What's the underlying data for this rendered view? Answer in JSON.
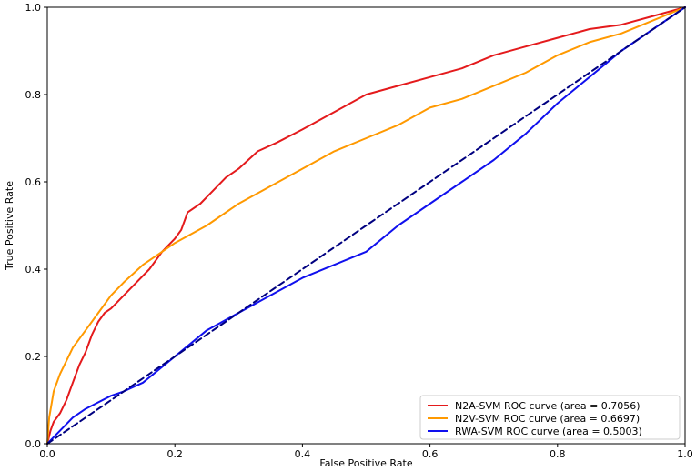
{
  "chart_data": {
    "type": "line",
    "title": "",
    "xlabel": "False Positive Rate",
    "ylabel": "True Positive Rate",
    "xlim": [
      0.0,
      1.0
    ],
    "ylim": [
      0.0,
      1.0
    ],
    "x_ticks": [
      "0.0",
      "0.2",
      "0.4",
      "0.6",
      "0.8",
      "1.0"
    ],
    "y_ticks": [
      "0.0",
      "0.2",
      "0.4",
      "0.6",
      "0.8",
      "1.0"
    ],
    "grid": false,
    "legend_position": "bottom-right",
    "series": [
      {
        "name": "N2A-SVM ROC curve (area = 0.7056)",
        "color": "#e41a1c",
        "x": [
          0.0,
          0.005,
          0.01,
          0.02,
          0.03,
          0.04,
          0.05,
          0.06,
          0.07,
          0.08,
          0.09,
          0.1,
          0.12,
          0.14,
          0.16,
          0.18,
          0.2,
          0.21,
          0.22,
          0.24,
          0.26,
          0.28,
          0.3,
          0.33,
          0.36,
          0.4,
          0.45,
          0.5,
          0.55,
          0.6,
          0.65,
          0.7,
          0.75,
          0.8,
          0.85,
          0.9,
          0.95,
          1.0
        ],
        "y": [
          0.0,
          0.03,
          0.05,
          0.07,
          0.1,
          0.14,
          0.18,
          0.21,
          0.25,
          0.28,
          0.3,
          0.31,
          0.34,
          0.37,
          0.4,
          0.44,
          0.47,
          0.49,
          0.53,
          0.55,
          0.58,
          0.61,
          0.63,
          0.67,
          0.69,
          0.72,
          0.76,
          0.8,
          0.82,
          0.84,
          0.86,
          0.89,
          0.91,
          0.93,
          0.95,
          0.96,
          0.98,
          1.0
        ]
      },
      {
        "name": "N2V-SVM ROC curve (area = 0.6697)",
        "color": "#ff9900",
        "x": [
          0.0,
          0.003,
          0.01,
          0.02,
          0.03,
          0.04,
          0.06,
          0.08,
          0.1,
          0.12,
          0.15,
          0.18,
          0.2,
          0.25,
          0.3,
          0.35,
          0.4,
          0.45,
          0.5,
          0.55,
          0.6,
          0.65,
          0.7,
          0.75,
          0.8,
          0.85,
          0.9,
          0.95,
          1.0
        ],
        "y": [
          0.0,
          0.06,
          0.12,
          0.16,
          0.19,
          0.22,
          0.26,
          0.3,
          0.34,
          0.37,
          0.41,
          0.44,
          0.46,
          0.5,
          0.55,
          0.59,
          0.63,
          0.67,
          0.7,
          0.73,
          0.77,
          0.79,
          0.82,
          0.85,
          0.89,
          0.92,
          0.94,
          0.97,
          1.0
        ]
      },
      {
        "name": "RWA-SVM ROC curve (area = 0.5003)",
        "color": "#1010ee",
        "x": [
          0.0,
          0.02,
          0.04,
          0.06,
          0.08,
          0.1,
          0.12,
          0.15,
          0.2,
          0.25,
          0.3,
          0.35,
          0.4,
          0.45,
          0.5,
          0.55,
          0.6,
          0.65,
          0.7,
          0.75,
          0.8,
          0.85,
          0.9,
          0.95,
          1.0
        ],
        "y": [
          0.0,
          0.03,
          0.06,
          0.08,
          0.095,
          0.11,
          0.12,
          0.14,
          0.2,
          0.26,
          0.3,
          0.34,
          0.38,
          0.41,
          0.44,
          0.5,
          0.55,
          0.6,
          0.65,
          0.71,
          0.78,
          0.84,
          0.9,
          0.95,
          1.0
        ]
      },
      {
        "name": "",
        "color": "#000080",
        "style": "dashed",
        "x": [
          0.0,
          1.0
        ],
        "y": [
          0.0,
          1.0
        ]
      }
    ]
  }
}
